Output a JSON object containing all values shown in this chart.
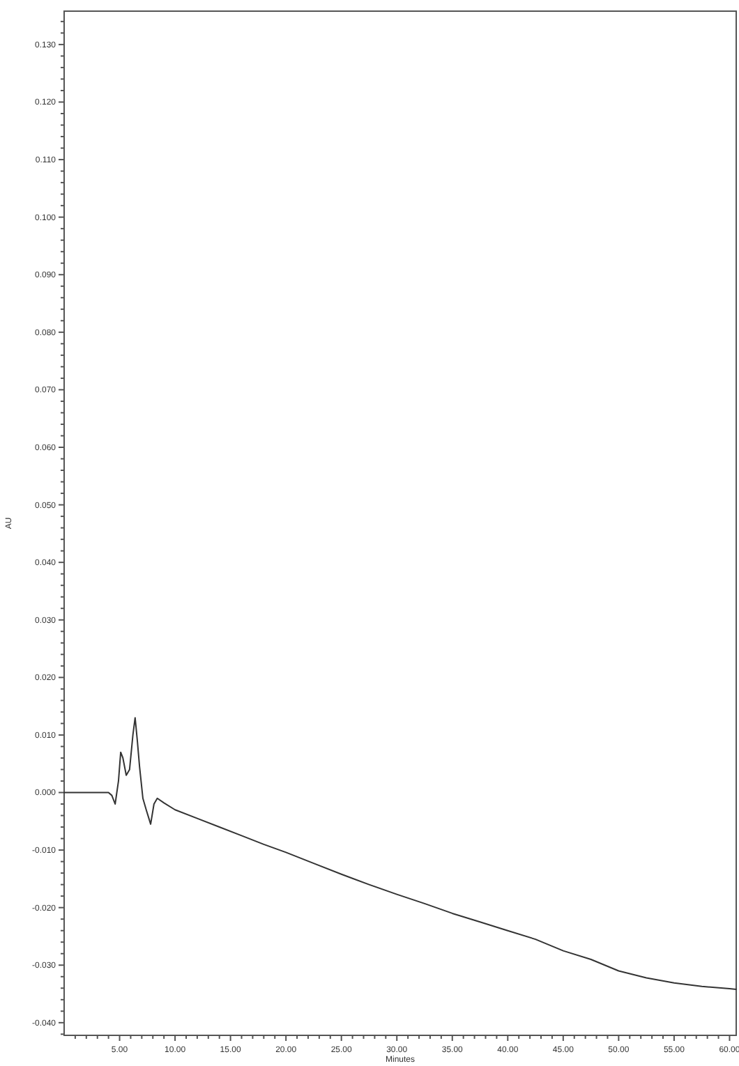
{
  "chart_data": {
    "type": "line",
    "xlabel": "Minutes",
    "ylabel": "AU",
    "xlim": [
      0,
      60.6
    ],
    "ylim": [
      -0.0422,
      0.1358
    ],
    "xticks": [
      {
        "value": 1,
        "label": null
      },
      {
        "value": 2,
        "label": null
      },
      {
        "value": 3,
        "label": null
      },
      {
        "value": 4,
        "label": null
      },
      {
        "value": 5,
        "label": "5.00"
      },
      {
        "value": 6,
        "label": null
      },
      {
        "value": 7,
        "label": null
      },
      {
        "value": 8,
        "label": null
      },
      {
        "value": 9,
        "label": null
      },
      {
        "value": 10,
        "label": "10.00"
      },
      {
        "value": 11,
        "label": null
      },
      {
        "value": 12,
        "label": null
      },
      {
        "value": 13,
        "label": null
      },
      {
        "value": 14,
        "label": null
      },
      {
        "value": 15,
        "label": "15.00"
      },
      {
        "value": 16,
        "label": null
      },
      {
        "value": 17,
        "label": null
      },
      {
        "value": 18,
        "label": null
      },
      {
        "value": 19,
        "label": null
      },
      {
        "value": 20,
        "label": "20.00"
      },
      {
        "value": 21,
        "label": null
      },
      {
        "value": 22,
        "label": null
      },
      {
        "value": 23,
        "label": null
      },
      {
        "value": 24,
        "label": null
      },
      {
        "value": 25,
        "label": "25.00"
      },
      {
        "value": 26,
        "label": null
      },
      {
        "value": 27,
        "label": null
      },
      {
        "value": 28,
        "label": null
      },
      {
        "value": 29,
        "label": null
      },
      {
        "value": 30,
        "label": "30.00"
      },
      {
        "value": 31,
        "label": null
      },
      {
        "value": 32,
        "label": null
      },
      {
        "value": 33,
        "label": null
      },
      {
        "value": 34,
        "label": null
      },
      {
        "value": 35,
        "label": "35.00"
      },
      {
        "value": 36,
        "label": null
      },
      {
        "value": 37,
        "label": null
      },
      {
        "value": 38,
        "label": null
      },
      {
        "value": 39,
        "label": null
      },
      {
        "value": 40,
        "label": "40.00"
      },
      {
        "value": 41,
        "label": null
      },
      {
        "value": 42,
        "label": null
      },
      {
        "value": 43,
        "label": null
      },
      {
        "value": 44,
        "label": null
      },
      {
        "value": 45,
        "label": "45.00"
      },
      {
        "value": 46,
        "label": null
      },
      {
        "value": 47,
        "label": null
      },
      {
        "value": 48,
        "label": null
      },
      {
        "value": 49,
        "label": null
      },
      {
        "value": 50,
        "label": "50.00"
      },
      {
        "value": 51,
        "label": null
      },
      {
        "value": 52,
        "label": null
      },
      {
        "value": 53,
        "label": null
      },
      {
        "value": 54,
        "label": null
      },
      {
        "value": 55,
        "label": "55.00"
      },
      {
        "value": 56,
        "label": null
      },
      {
        "value": 57,
        "label": null
      },
      {
        "value": 58,
        "label": null
      },
      {
        "value": 59,
        "label": null
      },
      {
        "value": 60,
        "label": "60.00"
      }
    ],
    "yticks": [
      {
        "value": -0.042,
        "label": null
      },
      {
        "value": -0.04,
        "label": "-0.040"
      },
      {
        "value": -0.038,
        "label": null
      },
      {
        "value": -0.036,
        "label": null
      },
      {
        "value": -0.034,
        "label": null
      },
      {
        "value": -0.032,
        "label": null
      },
      {
        "value": -0.03,
        "label": "-0.030"
      },
      {
        "value": -0.028,
        "label": null
      },
      {
        "value": -0.026,
        "label": null
      },
      {
        "value": -0.024,
        "label": null
      },
      {
        "value": -0.022,
        "label": null
      },
      {
        "value": -0.02,
        "label": "-0.020"
      },
      {
        "value": -0.018,
        "label": null
      },
      {
        "value": -0.016,
        "label": null
      },
      {
        "value": -0.014,
        "label": null
      },
      {
        "value": -0.012,
        "label": null
      },
      {
        "value": -0.01,
        "label": "-0.010"
      },
      {
        "value": -0.008,
        "label": null
      },
      {
        "value": -0.006,
        "label": null
      },
      {
        "value": -0.004,
        "label": null
      },
      {
        "value": -0.002,
        "label": null
      },
      {
        "value": 0,
        "label": "0.000"
      },
      {
        "value": 0.002,
        "label": null
      },
      {
        "value": 0.004,
        "label": null
      },
      {
        "value": 0.006,
        "label": null
      },
      {
        "value": 0.008,
        "label": null
      },
      {
        "value": 0.01,
        "label": "0.010"
      },
      {
        "value": 0.012,
        "label": null
      },
      {
        "value": 0.014,
        "label": null
      },
      {
        "value": 0.016,
        "label": null
      },
      {
        "value": 0.018,
        "label": null
      },
      {
        "value": 0.02,
        "label": "0.020"
      },
      {
        "value": 0.022,
        "label": null
      },
      {
        "value": 0.024,
        "label": null
      },
      {
        "value": 0.026,
        "label": null
      },
      {
        "value": 0.028,
        "label": null
      },
      {
        "value": 0.03,
        "label": "0.030"
      },
      {
        "value": 0.032,
        "label": null
      },
      {
        "value": 0.034,
        "label": null
      },
      {
        "value": 0.036,
        "label": null
      },
      {
        "value": 0.038,
        "label": null
      },
      {
        "value": 0.04,
        "label": "0.040"
      },
      {
        "value": 0.042,
        "label": null
      },
      {
        "value": 0.044,
        "label": null
      },
      {
        "value": 0.046,
        "label": null
      },
      {
        "value": 0.048,
        "label": null
      },
      {
        "value": 0.05,
        "label": "0.050"
      },
      {
        "value": 0.052,
        "label": null
      },
      {
        "value": 0.054,
        "label": null
      },
      {
        "value": 0.056,
        "label": null
      },
      {
        "value": 0.058,
        "label": null
      },
      {
        "value": 0.06,
        "label": "0.060"
      },
      {
        "value": 0.062,
        "label": null
      },
      {
        "value": 0.064,
        "label": null
      },
      {
        "value": 0.066,
        "label": null
      },
      {
        "value": 0.068,
        "label": null
      },
      {
        "value": 0.07,
        "label": "0.070"
      },
      {
        "value": 0.072,
        "label": null
      },
      {
        "value": 0.074,
        "label": null
      },
      {
        "value": 0.076,
        "label": null
      },
      {
        "value": 0.078,
        "label": null
      },
      {
        "value": 0.08,
        "label": "0.080"
      },
      {
        "value": 0.082,
        "label": null
      },
      {
        "value": 0.084,
        "label": null
      },
      {
        "value": 0.086,
        "label": null
      },
      {
        "value": 0.088,
        "label": null
      },
      {
        "value": 0.09,
        "label": "0.090"
      },
      {
        "value": 0.092,
        "label": null
      },
      {
        "value": 0.094,
        "label": null
      },
      {
        "value": 0.096,
        "label": null
      },
      {
        "value": 0.098,
        "label": null
      },
      {
        "value": 0.1,
        "label": "0.100"
      },
      {
        "value": 0.102,
        "label": null
      },
      {
        "value": 0.104,
        "label": null
      },
      {
        "value": 0.106,
        "label": null
      },
      {
        "value": 0.108,
        "label": null
      },
      {
        "value": 0.11,
        "label": "0.110"
      },
      {
        "value": 0.112,
        "label": null
      },
      {
        "value": 0.114,
        "label": null
      },
      {
        "value": 0.116,
        "label": null
      },
      {
        "value": 0.118,
        "label": null
      },
      {
        "value": 0.12,
        "label": "0.120"
      },
      {
        "value": 0.122,
        "label": null
      },
      {
        "value": 0.124,
        "label": null
      },
      {
        "value": 0.126,
        "label": null
      },
      {
        "value": 0.128,
        "label": null
      },
      {
        "value": 0.13,
        "label": "0.130"
      },
      {
        "value": 0.132,
        "label": null
      },
      {
        "value": 0.134,
        "label": null
      }
    ],
    "grid": false,
    "marker": "none",
    "line_style": "solid",
    "series": [
      {
        "color": "#333333",
        "x": [
          0,
          1,
          2,
          3,
          4,
          4.3,
          4.6,
          4.9,
          5.1,
          5.3,
          5.6,
          5.9,
          6.2,
          6.4,
          6.6,
          6.8,
          7.1,
          7.4,
          7.8,
          8.1,
          8.4,
          9,
          10,
          12,
          14,
          16,
          18,
          20,
          22.5,
          25,
          27.5,
          30,
          32.5,
          35,
          37.5,
          40,
          42.5,
          45,
          47.5,
          50,
          52.5,
          55,
          57.5,
          60,
          60.6
        ],
        "values": [
          0,
          0,
          0,
          0,
          0,
          -0.0005,
          -0.002,
          0.002,
          0.007,
          0.006,
          0.003,
          0.004,
          0.01,
          0.013,
          0.009,
          0.0045,
          -0.001,
          -0.003,
          -0.0055,
          -0.002,
          -0.001,
          -0.0018,
          -0.003,
          -0.0045,
          -0.006,
          -0.0075,
          -0.009,
          -0.0104,
          -0.0123,
          -0.0142,
          -0.016,
          -0.0177,
          -0.0193,
          -0.021,
          -0.0225,
          -0.024,
          -0.0255,
          -0.0275,
          -0.029,
          -0.031,
          -0.0322,
          -0.0331,
          -0.0337,
          -0.0341,
          -0.0342
        ]
      }
    ]
  }
}
